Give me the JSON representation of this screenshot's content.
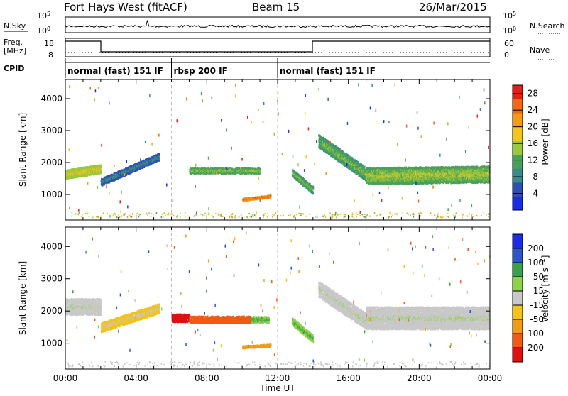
{
  "header": {
    "station": "Fort Hays West (fitACF)",
    "beam": "Beam 15",
    "date": "26/Mar/2015"
  },
  "noise_panel": {
    "left_label": "N.Sky",
    "right_label": "N.Search",
    "tick_top": "10^5",
    "tick_bottom": "10^0"
  },
  "freq_panel": {
    "label_line1": "Freq.",
    "label_line2": "[MHz]",
    "left_ticks": [
      "18",
      "8"
    ],
    "right_ticks": [
      "60",
      "0"
    ],
    "right_label": "Nave"
  },
  "cpid": {
    "label": "CPID",
    "modes": [
      {
        "label": "normal (fast) 151 IF",
        "start_hour": 0,
        "end_hour": 6
      },
      {
        "label": "rbsp 200 IF",
        "start_hour": 6,
        "end_hour": 12
      },
      {
        "label": "normal (fast) 151 IF",
        "start_hour": 12,
        "end_hour": 24
      }
    ]
  },
  "colors": {
    "power_scale": [
      "#1a2ce6",
      "#2d4fb0",
      "#3a8a8a",
      "#4aa05a",
      "#98c83c",
      "#f2c51f",
      "#f39a16",
      "#f06a12",
      "#e02214"
    ],
    "velocity_scale": [
      "#1a2ce6",
      "#2d55c8",
      "#3aa04a",
      "#8ed24a",
      "#c8c8c8",
      "#f3c21c",
      "#f39a16",
      "#f05a12",
      "#e01010"
    ]
  },
  "chart_data": [
    {
      "type": "heatmap",
      "panel": "power",
      "xlabel": "Time UT",
      "ylabel": "Slant Range [km]",
      "xlim": [
        0,
        24
      ],
      "ylim": [
        200,
        4600
      ],
      "x_tick_labels": [
        "00:00",
        "04:00",
        "08:00",
        "12:00",
        "16:00",
        "20:00",
        "00:00"
      ],
      "y_ticks": [
        "1000",
        "2000",
        "3000",
        "4000"
      ],
      "colorbar_label": "Power [dB]",
      "colorbar_ticks": [
        "4",
        "8",
        "12",
        "16",
        "20",
        "24",
        "28"
      ],
      "colorbar_range": [
        0,
        30
      ],
      "bands": [
        {
          "t0": 0.0,
          "t1": 2.0,
          "r0": 1650,
          "r1": 1820,
          "w": 280,
          "v": 16
        },
        {
          "t0": 2.0,
          "t1": 5.3,
          "r0": 1400,
          "r1": 2200,
          "w": 230,
          "v": 7
        },
        {
          "t0": 7.0,
          "t1": 11.0,
          "r0": 1760,
          "r1": 1760,
          "w": 180,
          "v": 13
        },
        {
          "t0": 10.0,
          "t1": 11.6,
          "r0": 860,
          "r1": 960,
          "w": 90,
          "v": 24
        },
        {
          "t0": 12.8,
          "t1": 14.0,
          "r0": 1700,
          "r1": 1150,
          "w": 240,
          "v": 12
        },
        {
          "t0": 14.3,
          "t1": 17.0,
          "r0": 2700,
          "r1": 1650,
          "w": 420,
          "v": 12
        },
        {
          "t0": 17.0,
          "t1": 24.0,
          "r0": 1600,
          "r1": 1650,
          "w": 520,
          "v": 14
        }
      ]
    },
    {
      "type": "heatmap",
      "panel": "velocity",
      "xlabel": "Time UT",
      "ylabel": "Slant Range [km]",
      "xlim": [
        0,
        24
      ],
      "ylim": [
        200,
        4600
      ],
      "x_tick_labels": [
        "00:00",
        "04:00",
        "08:00",
        "12:00",
        "16:00",
        "20:00",
        "00:00"
      ],
      "y_ticks": [
        "1000",
        "2000",
        "3000",
        "4000"
      ],
      "colorbar_label": "Velocity [m s^-1]",
      "colorbar_ticks": [
        "200",
        "100",
        "50",
        "15",
        "-15",
        "-50",
        "-100",
        "-200"
      ],
      "bands": [
        {
          "t0": 0.0,
          "t1": 2.0,
          "r0": 2150,
          "r1": 2150,
          "w": 500,
          "v": 0
        },
        {
          "t0": 2.0,
          "t1": 5.3,
          "r0": 1500,
          "r1": 2100,
          "w": 300,
          "v": -20
        },
        {
          "t0": 6.0,
          "t1": 7.0,
          "r0": 1800,
          "r1": 1800,
          "w": 250,
          "v": -250
        },
        {
          "t0": 7.0,
          "t1": 10.5,
          "r0": 1750,
          "r1": 1750,
          "w": 220,
          "v": -150
        },
        {
          "t0": 10.5,
          "t1": 11.5,
          "r0": 1750,
          "r1": 1750,
          "w": 200,
          "v": 50
        },
        {
          "t0": 10.0,
          "t1": 11.6,
          "r0": 900,
          "r1": 950,
          "w": 80,
          "v": -70
        },
        {
          "t0": 12.8,
          "t1": 14.0,
          "r0": 1700,
          "r1": 1150,
          "w": 240,
          "v": 50
        },
        {
          "t0": 14.3,
          "t1": 17.0,
          "r0": 2700,
          "r1": 1700,
          "w": 500,
          "v": 0
        },
        {
          "t0": 17.0,
          "t1": 24.0,
          "r0": 1800,
          "r1": 1800,
          "w": 700,
          "v": 0
        }
      ]
    }
  ]
}
